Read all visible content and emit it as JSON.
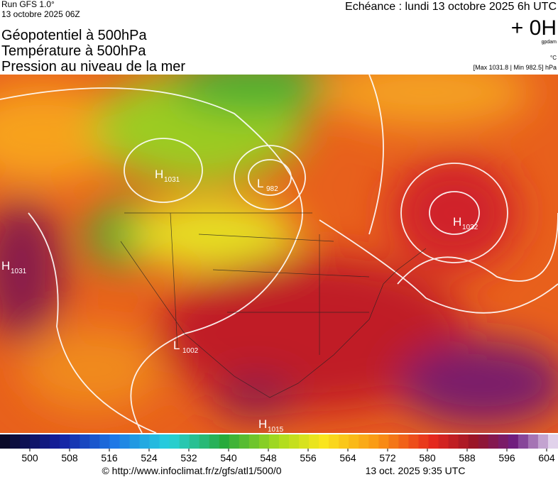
{
  "header": {
    "run": "Run GFS 1.0°",
    "date": "13 octobre 2025 06Z",
    "echeance": "Echéance : lundi 13 octobre 2025 6h UTC",
    "offset": "+ 0H",
    "unit_geo": "gpdam",
    "unit_temp": "°C",
    "pressure_range": "[Max 1031.8 | Min 982.5] hPa",
    "titles": [
      "Géopotentiel à 500hPa",
      "Température à 500hPa",
      "Pression au niveau de la mer"
    ]
  },
  "map": {
    "centers": [
      {
        "kind": "H",
        "value": "1031"
      },
      {
        "kind": "L",
        "value": "982"
      },
      {
        "kind": "H",
        "value": "1031"
      },
      {
        "kind": "H",
        "value": "1032"
      },
      {
        "kind": "L",
        "value": "1002"
      },
      {
        "kind": "H",
        "value": "1015"
      }
    ]
  },
  "colorbar": {
    "ticks": [
      500,
      508,
      516,
      524,
      532,
      540,
      548,
      556,
      564,
      572,
      580,
      588,
      596,
      604
    ]
  },
  "footer": {
    "source": "© http://www.infoclimat.fr/z/gfs/atl1/500/0",
    "generated": "13 oct. 2025  9:35 UTC"
  }
}
